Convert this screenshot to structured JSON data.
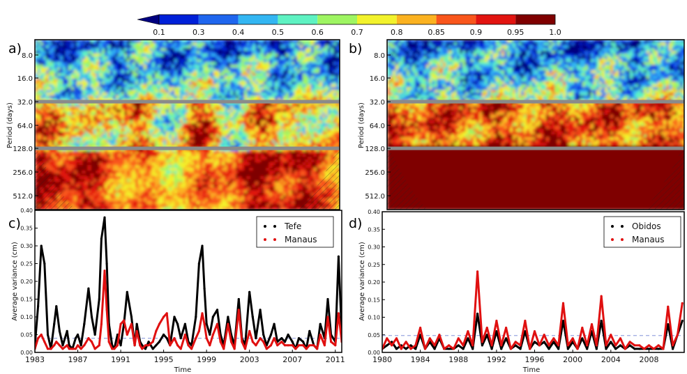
{
  "colorbar": {
    "ticks": [
      "0.1",
      "0.3",
      "0.4",
      "0.5",
      "0.6",
      "0.7",
      "0.8",
      "0.85",
      "0.9",
      "0.95",
      "1.0"
    ],
    "colors": [
      "#00007f",
      "#0020d8",
      "#1f66ee",
      "#33b6f2",
      "#5ef2c2",
      "#9ef562",
      "#f2f22c",
      "#fbb220",
      "#f9561c",
      "#e21410",
      "#7f0000"
    ]
  },
  "panels": {
    "a": {
      "label": "a)",
      "ylabel": "Period (days)",
      "yticks": [
        "8.0",
        "16.0",
        "32.0",
        "64.0",
        "128.0",
        "256.0",
        "512.0"
      ]
    },
    "b": {
      "label": "b)",
      "ylabel": "Period (days)",
      "yticks": [
        "8.0",
        "16.0",
        "32.0",
        "64.0",
        "128.0",
        "256.0",
        "512.0"
      ]
    }
  },
  "chart_data": [
    {
      "panel": "c",
      "type": "line",
      "label": "c)",
      "xlabel": "Time",
      "ylabel": "Average variance (cm)",
      "xticks": [
        "1983",
        "1987",
        "1991",
        "1995",
        "1999",
        "2003",
        "2007",
        "2011"
      ],
      "xlim": [
        1983,
        2011.6
      ],
      "yticks": [
        "0.00",
        "0.05",
        "0.10",
        "0.15",
        "0.20",
        "0.25",
        "0.30",
        "0.35",
        "0.40"
      ],
      "ylim": [
        0,
        0.4
      ],
      "threshold": 0.04,
      "legend_position": "top-right",
      "series": [
        {
          "name": "Tefe",
          "color": "#000000",
          "x": [
            1983.0,
            1983.3,
            1983.6,
            1983.9,
            1984.2,
            1984.5,
            1984.8,
            1985.0,
            1985.3,
            1985.6,
            1986.0,
            1986.2,
            1986.5,
            1986.8,
            1987.0,
            1987.3,
            1987.6,
            1988.0,
            1988.3,
            1988.6,
            1989.0,
            1989.2,
            1989.5,
            1989.7,
            1989.9,
            1990.2,
            1990.4,
            1990.7,
            1991.0,
            1991.3,
            1991.6,
            1992.0,
            1992.3,
            1992.5,
            1992.8,
            1993.0,
            1993.3,
            1993.6,
            1994.0,
            1994.3,
            1994.6,
            1995.0,
            1995.3,
            1995.6,
            1996.0,
            1996.3,
            1996.6,
            1997.0,
            1997.3,
            1997.6,
            1998.0,
            1998.3,
            1998.6,
            1998.8,
            1999.0,
            1999.3,
            1999.6,
            2000.0,
            2000.3,
            2000.6,
            2001.0,
            2001.3,
            2001.6,
            2002.0,
            2002.3,
            2002.6,
            2003.0,
            2003.3,
            2003.6,
            2004.0,
            2004.3,
            2004.6,
            2005.0,
            2005.3,
            2005.6,
            2006.0,
            2006.3,
            2006.6,
            2007.0,
            2007.3,
            2007.6,
            2008.0,
            2008.3,
            2008.6,
            2009.0,
            2009.3,
            2009.6,
            2010.0,
            2010.3,
            2010.6,
            2011.0,
            2011.3,
            2011.6
          ],
          "y": [
            0.02,
            0.13,
            0.3,
            0.25,
            0.05,
            0.01,
            0.08,
            0.13,
            0.06,
            0.02,
            0.06,
            0.02,
            0.01,
            0.04,
            0.05,
            0.02,
            0.08,
            0.18,
            0.1,
            0.05,
            0.15,
            0.32,
            0.38,
            0.25,
            0.08,
            0.02,
            0.01,
            0.05,
            0.02,
            0.08,
            0.17,
            0.1,
            0.02,
            0.08,
            0.03,
            0.02,
            0.01,
            0.03,
            0.01,
            0.02,
            0.03,
            0.05,
            0.04,
            0.02,
            0.1,
            0.08,
            0.04,
            0.08,
            0.03,
            0.02,
            0.1,
            0.25,
            0.3,
            0.18,
            0.08,
            0.05,
            0.1,
            0.12,
            0.05,
            0.02,
            0.1,
            0.05,
            0.02,
            0.15,
            0.04,
            0.02,
            0.17,
            0.1,
            0.04,
            0.12,
            0.05,
            0.02,
            0.05,
            0.08,
            0.03,
            0.04,
            0.03,
            0.05,
            0.03,
            0.01,
            0.04,
            0.03,
            0.01,
            0.06,
            0.02,
            0.01,
            0.08,
            0.04,
            0.15,
            0.05,
            0.03,
            0.27,
            0.05
          ]
        },
        {
          "name": "Manaus",
          "color": "#e01010",
          "x": [
            1983.0,
            1983.3,
            1983.6,
            1983.9,
            1984.2,
            1984.5,
            1984.8,
            1985.0,
            1985.3,
            1985.6,
            1986.0,
            1986.2,
            1986.5,
            1986.8,
            1987.0,
            1987.3,
            1987.6,
            1988.0,
            1988.3,
            1988.6,
            1989.0,
            1989.2,
            1989.5,
            1989.7,
            1989.9,
            1990.2,
            1990.4,
            1990.7,
            1991.0,
            1991.3,
            1991.6,
            1992.0,
            1992.3,
            1992.5,
            1992.8,
            1993.0,
            1993.3,
            1993.6,
            1994.0,
            1994.3,
            1994.6,
            1995.0,
            1995.3,
            1995.6,
            1996.0,
            1996.3,
            1996.6,
            1997.0,
            1997.3,
            1997.6,
            1998.0,
            1998.3,
            1998.6,
            1998.8,
            1999.0,
            1999.3,
            1999.6,
            2000.0,
            2000.3,
            2000.6,
            2001.0,
            2001.3,
            2001.6,
            2002.0,
            2002.3,
            2002.6,
            2003.0,
            2003.3,
            2003.6,
            2004.0,
            2004.3,
            2004.6,
            2005.0,
            2005.3,
            2005.6,
            2006.0,
            2006.3,
            2006.6,
            2007.0,
            2007.3,
            2007.6,
            2008.0,
            2008.3,
            2008.6,
            2009.0,
            2009.3,
            2009.6,
            2010.0,
            2010.3,
            2010.6,
            2011.0,
            2011.3,
            2011.6
          ],
          "y": [
            0.01,
            0.04,
            0.05,
            0.03,
            0.01,
            0.01,
            0.02,
            0.03,
            0.02,
            0.01,
            0.02,
            0.01,
            0.01,
            0.01,
            0.02,
            0.01,
            0.02,
            0.04,
            0.03,
            0.01,
            0.02,
            0.08,
            0.23,
            0.12,
            0.03,
            0.01,
            0.01,
            0.02,
            0.08,
            0.09,
            0.05,
            0.08,
            0.02,
            0.06,
            0.02,
            0.01,
            0.02,
            0.02,
            0.03,
            0.06,
            0.08,
            0.1,
            0.11,
            0.02,
            0.04,
            0.02,
            0.01,
            0.05,
            0.02,
            0.01,
            0.04,
            0.06,
            0.11,
            0.08,
            0.04,
            0.02,
            0.05,
            0.08,
            0.03,
            0.01,
            0.08,
            0.03,
            0.01,
            0.12,
            0.03,
            0.01,
            0.06,
            0.03,
            0.02,
            0.04,
            0.03,
            0.01,
            0.02,
            0.04,
            0.02,
            0.03,
            0.02,
            0.02,
            0.02,
            0.01,
            0.02,
            0.02,
            0.01,
            0.02,
            0.02,
            0.01,
            0.05,
            0.02,
            0.1,
            0.03,
            0.02,
            0.11,
            0.03
          ]
        }
      ]
    },
    {
      "panel": "d",
      "type": "line",
      "label": "d)",
      "xlabel": "Time",
      "ylabel": "Average variance (cm)",
      "xticks": [
        "1980",
        "1984",
        "1988",
        "1992",
        "1996",
        "2000",
        "2004",
        "2008"
      ],
      "xlim": [
        1980,
        2011.7
      ],
      "yticks": [
        "0.00",
        "0.05",
        "0.10",
        "0.15",
        "0.20",
        "0.25",
        "0.30",
        "0.35",
        "0.40"
      ],
      "ylim": [
        0,
        0.4
      ],
      "threshold": 0.048,
      "legend_position": "top-right",
      "series": [
        {
          "name": "Obidos",
          "color": "#000000",
          "x": [
            1980.0,
            1980.5,
            1981.0,
            1981.5,
            1982.0,
            1982.5,
            1983.0,
            1983.5,
            1984.0,
            1984.5,
            1985.0,
            1985.5,
            1986.0,
            1986.5,
            1987.0,
            1987.5,
            1988.0,
            1988.5,
            1989.0,
            1989.5,
            1990.0,
            1990.5,
            1991.0,
            1991.5,
            1992.0,
            1992.5,
            1993.0,
            1993.5,
            1994.0,
            1994.5,
            1995.0,
            1995.5,
            1996.0,
            1996.5,
            1997.0,
            1997.5,
            1998.0,
            1998.5,
            1999.0,
            1999.5,
            2000.0,
            2000.5,
            2001.0,
            2001.5,
            2002.0,
            2002.5,
            2003.0,
            2003.5,
            2004.0,
            2004.5,
            2005.0,
            2005.5,
            2006.0,
            2006.5,
            2007.0,
            2007.5,
            2008.0,
            2008.5,
            2009.0,
            2009.5,
            2010.0,
            2010.5,
            2011.0,
            2011.5
          ],
          "y": [
            0.01,
            0.02,
            0.03,
            0.01,
            0.02,
            0.01,
            0.02,
            0.01,
            0.05,
            0.01,
            0.03,
            0.01,
            0.04,
            0.01,
            0.01,
            0.01,
            0.02,
            0.01,
            0.04,
            0.01,
            0.11,
            0.02,
            0.05,
            0.01,
            0.06,
            0.01,
            0.04,
            0.01,
            0.02,
            0.01,
            0.06,
            0.01,
            0.03,
            0.02,
            0.03,
            0.01,
            0.03,
            0.01,
            0.09,
            0.01,
            0.03,
            0.01,
            0.04,
            0.01,
            0.06,
            0.01,
            0.09,
            0.01,
            0.03,
            0.01,
            0.02,
            0.01,
            0.02,
            0.01,
            0.01,
            0.01,
            0.01,
            0.01,
            0.01,
            0.01,
            0.08,
            0.01,
            0.05,
            0.09
          ]
        },
        {
          "name": "Manaus",
          "color": "#e01010",
          "x": [
            1980.0,
            1980.5,
            1981.0,
            1981.5,
            1982.0,
            1982.5,
            1983.0,
            1983.5,
            1984.0,
            1984.5,
            1985.0,
            1985.5,
            1986.0,
            1986.5,
            1987.0,
            1987.5,
            1988.0,
            1988.5,
            1989.0,
            1989.5,
            1990.0,
            1990.5,
            1991.0,
            1991.5,
            1992.0,
            1992.5,
            1993.0,
            1993.5,
            1994.0,
            1994.5,
            1995.0,
            1995.5,
            1996.0,
            1996.5,
            1997.0,
            1997.5,
            1998.0,
            1998.5,
            1999.0,
            1999.5,
            2000.0,
            2000.5,
            2001.0,
            2001.5,
            2002.0,
            2002.5,
            2003.0,
            2003.5,
            2004.0,
            2004.5,
            2005.0,
            2005.5,
            2006.0,
            2006.5,
            2007.0,
            2007.5,
            2008.0,
            2008.5,
            2009.0,
            2009.5,
            2010.0,
            2010.5,
            2011.0,
            2011.5
          ],
          "y": [
            0.01,
            0.04,
            0.02,
            0.04,
            0.01,
            0.03,
            0.01,
            0.02,
            0.07,
            0.01,
            0.04,
            0.02,
            0.05,
            0.01,
            0.02,
            0.01,
            0.04,
            0.02,
            0.06,
            0.02,
            0.23,
            0.03,
            0.07,
            0.02,
            0.09,
            0.02,
            0.07,
            0.01,
            0.03,
            0.02,
            0.09,
            0.01,
            0.06,
            0.02,
            0.05,
            0.02,
            0.04,
            0.02,
            0.14,
            0.02,
            0.04,
            0.01,
            0.07,
            0.02,
            0.08,
            0.02,
            0.16,
            0.02,
            0.05,
            0.02,
            0.04,
            0.01,
            0.03,
            0.02,
            0.02,
            0.01,
            0.02,
            0.01,
            0.02,
            0.01,
            0.13,
            0.02,
            0.05,
            0.14
          ]
        }
      ]
    }
  ]
}
